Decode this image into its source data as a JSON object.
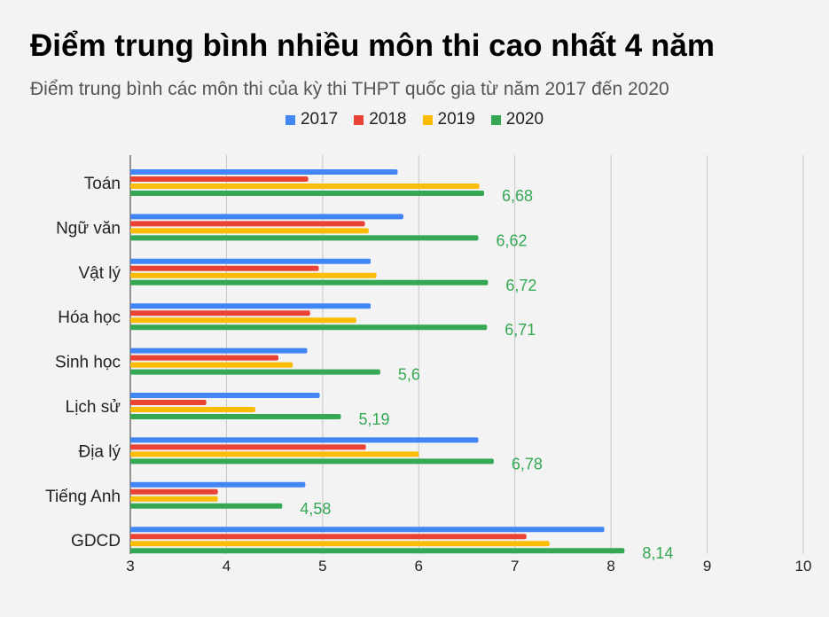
{
  "title": "Điểm trung bình nhiều môn thi cao nhất 4 năm",
  "subtitle": "Điểm trung bình các môn thi của kỳ thi THPT quốc gia từ năm 2017 đến 2020",
  "chart_data": {
    "type": "bar",
    "orientation": "horizontal",
    "title": "Điểm trung bình nhiều môn thi cao nhất 4 năm",
    "subtitle": "Điểm trung bình các môn thi của kỳ thi THPT quốc gia từ năm 2017 đến 2020",
    "categories": [
      "Toán",
      "Ngữ văn",
      "Vật lý",
      "Hóa học",
      "Sinh học",
      "Lịch sử",
      "Địa lý",
      "Tiếng Anh",
      "GDCD"
    ],
    "series": [
      {
        "name": "2017",
        "color": "#4285f4",
        "values": [
          5.78,
          5.84,
          5.5,
          5.5,
          4.84,
          4.97,
          6.62,
          4.82,
          7.93
        ]
      },
      {
        "name": "2018",
        "color": "#ea4335",
        "values": [
          4.85,
          5.44,
          4.96,
          4.87,
          4.54,
          3.79,
          5.45,
          3.91,
          7.12
        ]
      },
      {
        "name": "2019",
        "color": "#fbbc04",
        "values": [
          6.63,
          5.48,
          5.56,
          5.35,
          4.69,
          4.3,
          6.0,
          3.91,
          7.36
        ]
      },
      {
        "name": "2020",
        "color": "#34a853",
        "values": [
          6.68,
          6.62,
          6.72,
          6.71,
          5.6,
          5.19,
          6.78,
          4.58,
          8.14
        ]
      }
    ],
    "data_labels": {
      "series": "2020",
      "labels": [
        "6,68",
        "6,62",
        "6,72",
        "6,71",
        "5,6",
        "5,19",
        "6,78",
        "4,58",
        "8,14"
      ]
    },
    "xlim": [
      3,
      10
    ],
    "x_ticks": [
      "3",
      "4",
      "5",
      "6",
      "7",
      "8",
      "9",
      "10"
    ],
    "grid": true,
    "legend": "top"
  }
}
